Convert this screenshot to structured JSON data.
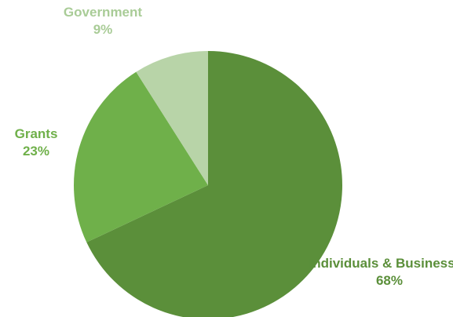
{
  "chart_data": {
    "type": "pie",
    "slices": [
      {
        "label": "Individuals & Businesses",
        "value": 68,
        "value_label": "68%",
        "color": "#5b8f3a",
        "label_color": "#5b8f3a"
      },
      {
        "label": "Grants",
        "value": 23,
        "value_label": "23%",
        "color": "#6fb04a",
        "label_color": "#6fb04a"
      },
      {
        "label": "Government",
        "value": 9,
        "value_label": "9%",
        "color": "#b8d4a8",
        "label_color": "#a9cc97"
      }
    ],
    "start_angle_deg": 0,
    "direction": "clockwise",
    "title": ""
  }
}
